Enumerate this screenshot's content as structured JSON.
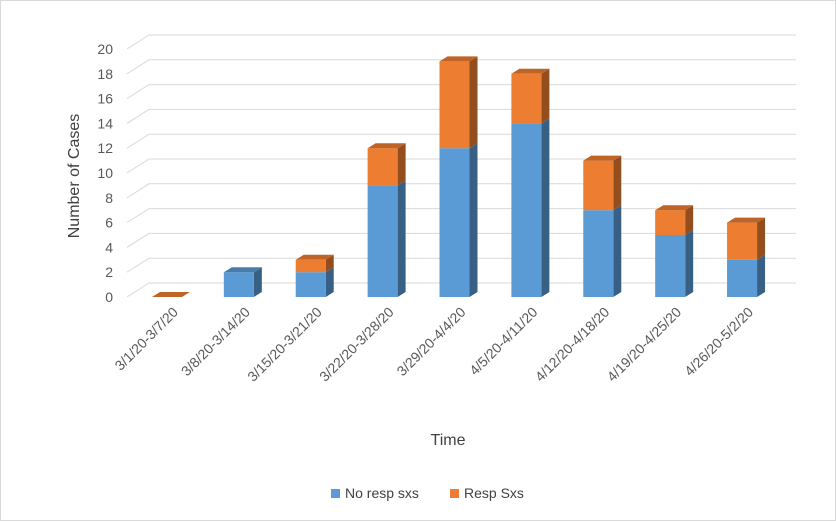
{
  "chart_data": {
    "type": "bar",
    "stacked": true,
    "three_d": true,
    "categories": [
      "3/1/20-3/7/20",
      "3/8/20-3/14/20",
      "3/15/20-3/21/20",
      "3/22/20-3/28/20",
      "3/29/20-4/4/20",
      "4/5/20-4/11/20",
      "4/12/20-4/18/20",
      "4/19/20-4/25/20",
      "4/26/20-5/2/20"
    ],
    "series": [
      {
        "name": "No resp sxs",
        "values": [
          0,
          2,
          2,
          9,
          12,
          14,
          7,
          5,
          3
        ],
        "color": "#5b9bd5"
      },
      {
        "name": "Resp Sxs",
        "values": [
          0,
          0,
          1,
          3,
          7,
          4,
          4,
          2,
          3
        ],
        "color": "#ed7d31"
      }
    ],
    "xlabel": "Time",
    "ylabel": "Number of Cases",
    "ylim": [
      0,
      20
    ],
    "yticks": [
      0,
      2,
      4,
      6,
      8,
      10,
      12,
      14,
      16,
      18,
      20
    ],
    "grid": true,
    "legend": "bottom"
  }
}
